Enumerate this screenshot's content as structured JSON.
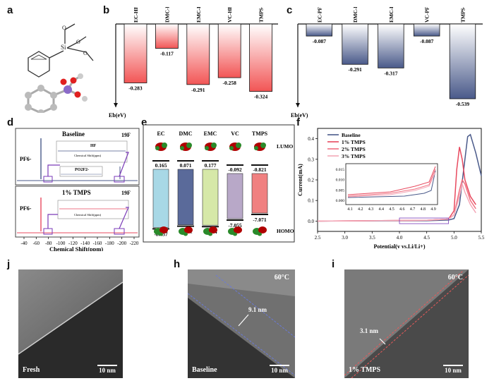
{
  "panel_labels": {
    "a": "a",
    "b": "b",
    "c": "c",
    "d": "d",
    "e": "e",
    "f": "f",
    "j": "j",
    "h": "h",
    "i": "i"
  },
  "colors": {
    "hf_red": "#f25555",
    "pf_blue": "#4a5a8a",
    "axis": "#111111"
  },
  "chart_data": [
    {
      "id": "b",
      "type": "bar",
      "categories": [
        "EC-HF",
        "DMC-HF",
        "EMC-HF",
        "VC-HF",
        "TMPS-HF"
      ],
      "values": [
        -0.283,
        -0.117,
        -0.291,
        -0.258,
        -0.324
      ],
      "value_labels": [
        "-0.283",
        "-0.117",
        "-0.291",
        "-0.258",
        "-0.324"
      ],
      "ylabel": "Eb(eV)",
      "ylim": [
        -0.4,
        0
      ]
    },
    {
      "id": "c",
      "type": "bar",
      "categories": [
        "EC-PF5",
        "DMC-PF5",
        "EMC-PF5",
        "VC-PF5",
        "TMPS-PF5"
      ],
      "values": [
        -0.087,
        -0.291,
        -0.317,
        -0.087,
        -0.539
      ],
      "value_labels": [
        "-0.087",
        "-0.291",
        "-0.317",
        "-0.087",
        "-0.539"
      ],
      "ylabel": "Eb(eV)",
      "ylim": [
        -0.6,
        0
      ]
    },
    {
      "id": "d",
      "type": "line",
      "xlabel": "Chemical Shift(ppm)",
      "xticks": [
        "-40",
        "-60",
        "-80",
        "-100",
        "-120",
        "-140",
        "-160",
        "-180",
        "-200",
        "-220"
      ],
      "xlim": [
        -40,
        -220
      ],
      "top": {
        "name": "Baseline",
        "nucleus": "19F",
        "peak1": "PF6-",
        "inset_title": "HF",
        "inset_label": "PO2F2-",
        "inset_axis": "Chemical Shift(ppm)"
      },
      "bottom": {
        "name": "1% TMPS",
        "nucleus": "19F",
        "peak1": "PF6-",
        "inset_axis": "Chemical Shift(ppm)"
      }
    },
    {
      "id": "e",
      "type": "bar",
      "categories": [
        "EC",
        "DMC",
        "EMC",
        "VC",
        "TMPS"
      ],
      "lumo": [
        0.165,
        0.071,
        0.177,
        -0.092,
        -0.821
      ],
      "homo": [
        -8.437,
        -8.201,
        -8.144,
        -7.055,
        -7.071
      ],
      "lumo_labels": [
        "0.165",
        "0.071",
        "0.177",
        "-0.092",
        "-0.821"
      ],
      "homo_labels": [
        "-8.437",
        "-8.201",
        "-8.144",
        "-7.055",
        "-7.071"
      ],
      "colors": [
        "#a8d8e6",
        "#5a6a9a",
        "#d6e8a8",
        "#b8a8c8",
        "#f08080"
      ],
      "lumo_text": "LUMO",
      "homo_text": "HOMO"
    },
    {
      "id": "f",
      "type": "line",
      "xlabel": "Potential(v vs.Li/Li+)",
      "ylabel": "Current(mA)",
      "xlim": [
        2.5,
        5.5
      ],
      "ylim": [
        -0.05,
        0.45
      ],
      "xticks": [
        "2.5",
        "3.0",
        "3.5",
        "4.0",
        "4.5",
        "5.0",
        "5.5"
      ],
      "yticks": [
        "0.0",
        "0.1",
        "0.2",
        "0.3",
        "0.4"
      ],
      "series": [
        {
          "name": "Baseline",
          "color": "#4a5a8a",
          "x": [
            2.5,
            4.5,
            4.9,
            5.0,
            5.1,
            5.2,
            5.25,
            5.3,
            5.4,
            5.5
          ],
          "y": [
            0.0,
            0.002,
            0.005,
            0.012,
            0.08,
            0.3,
            0.41,
            0.42,
            0.33,
            0.22
          ]
        },
        {
          "name": "1% TMPS",
          "color": "#e84a5f",
          "x": [
            2.5,
            4.5,
            4.9,
            5.0,
            5.05,
            5.1,
            5.15,
            5.2,
            5.3,
            5.4
          ],
          "y": [
            0.0,
            0.004,
            0.01,
            0.05,
            0.25,
            0.36,
            0.3,
            0.2,
            0.12,
            0.08
          ]
        },
        {
          "name": "2% TMPS",
          "color": "#f07080",
          "x": [
            2.5,
            4.5,
            4.9,
            5.0,
            5.1,
            5.15,
            5.2,
            5.3,
            5.4
          ],
          "y": [
            0.0,
            0.004,
            0.01,
            0.03,
            0.15,
            0.2,
            0.18,
            0.1,
            0.06
          ]
        },
        {
          "name": "3% TMPS",
          "color": "#f4a8b8",
          "x": [
            2.5,
            4.5,
            4.9,
            5.0,
            5.1,
            5.15,
            5.2,
            5.3,
            5.4
          ],
          "y": [
            0.0,
            0.004,
            0.01,
            0.03,
            0.12,
            0.18,
            0.14,
            0.08,
            0.04
          ]
        }
      ],
      "inset": {
        "xticks": [
          "4.1",
          "4.2",
          "4.3",
          "4.4",
          "4.5",
          "4.6",
          "4.7",
          "4.8",
          "4.9"
        ],
        "yticks": [
          "0.000",
          "0.005",
          "0.010",
          "0.015"
        ]
      }
    }
  ],
  "tem": {
    "j": {
      "condition": "Fresh",
      "scale": "10 nm"
    },
    "h": {
      "condition": "Baseline",
      "temp": "60°C",
      "thickness": "9.1 nm",
      "scale": "10 nm"
    },
    "i": {
      "condition": "1% TMPS",
      "temp": "60°C",
      "thickness": "3.1 nm",
      "scale": "10 nm"
    }
  }
}
